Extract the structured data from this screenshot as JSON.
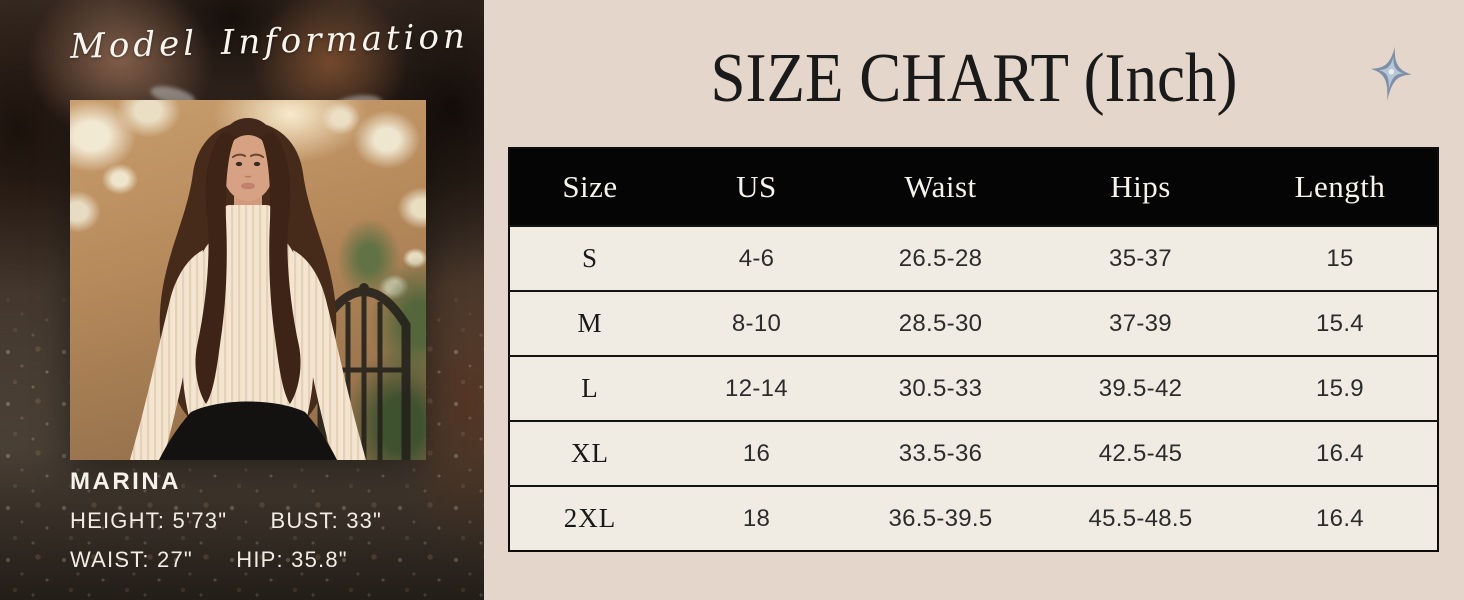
{
  "left_panel": {
    "script_heading": "Model Information",
    "model_name": "MARINA",
    "measurements": [
      {
        "text": "HEIGHT: 5'73\""
      },
      {
        "text": "BUST: 33\""
      },
      {
        "text": "WAIST: 27\""
      },
      {
        "text": "HIP: 35.8\""
      }
    ]
  },
  "right_panel": {
    "title": "SIZE CHART (Inch)",
    "sparkle_icon": "four-point-star",
    "size_chart": {
      "columns": [
        "Size",
        "US",
        "Waist",
        "Hips",
        "Length"
      ],
      "rows": [
        [
          "S",
          "4-6",
          "26.5-28",
          "35-37",
          "15"
        ],
        [
          "M",
          "8-10",
          "28.5-30",
          "37-39",
          "15.4"
        ],
        [
          "L",
          "12-14",
          "30.5-33",
          "39.5-42",
          "15.9"
        ],
        [
          "XL",
          "16",
          "33.5-36",
          "42.5-45",
          "16.4"
        ],
        [
          "2XL",
          "18",
          "36.5-39.5",
          "45.5-48.5",
          "16.4"
        ]
      ]
    },
    "colors": {
      "panel_background": "#e4d6ca",
      "table_header_bg": "#050505",
      "table_header_text": "#f6f3ed",
      "table_row_bg": "#f1ece3",
      "table_border": "#0c0c0c",
      "title_text": "#1a1a1a",
      "sparkle": "#8296ad"
    }
  }
}
